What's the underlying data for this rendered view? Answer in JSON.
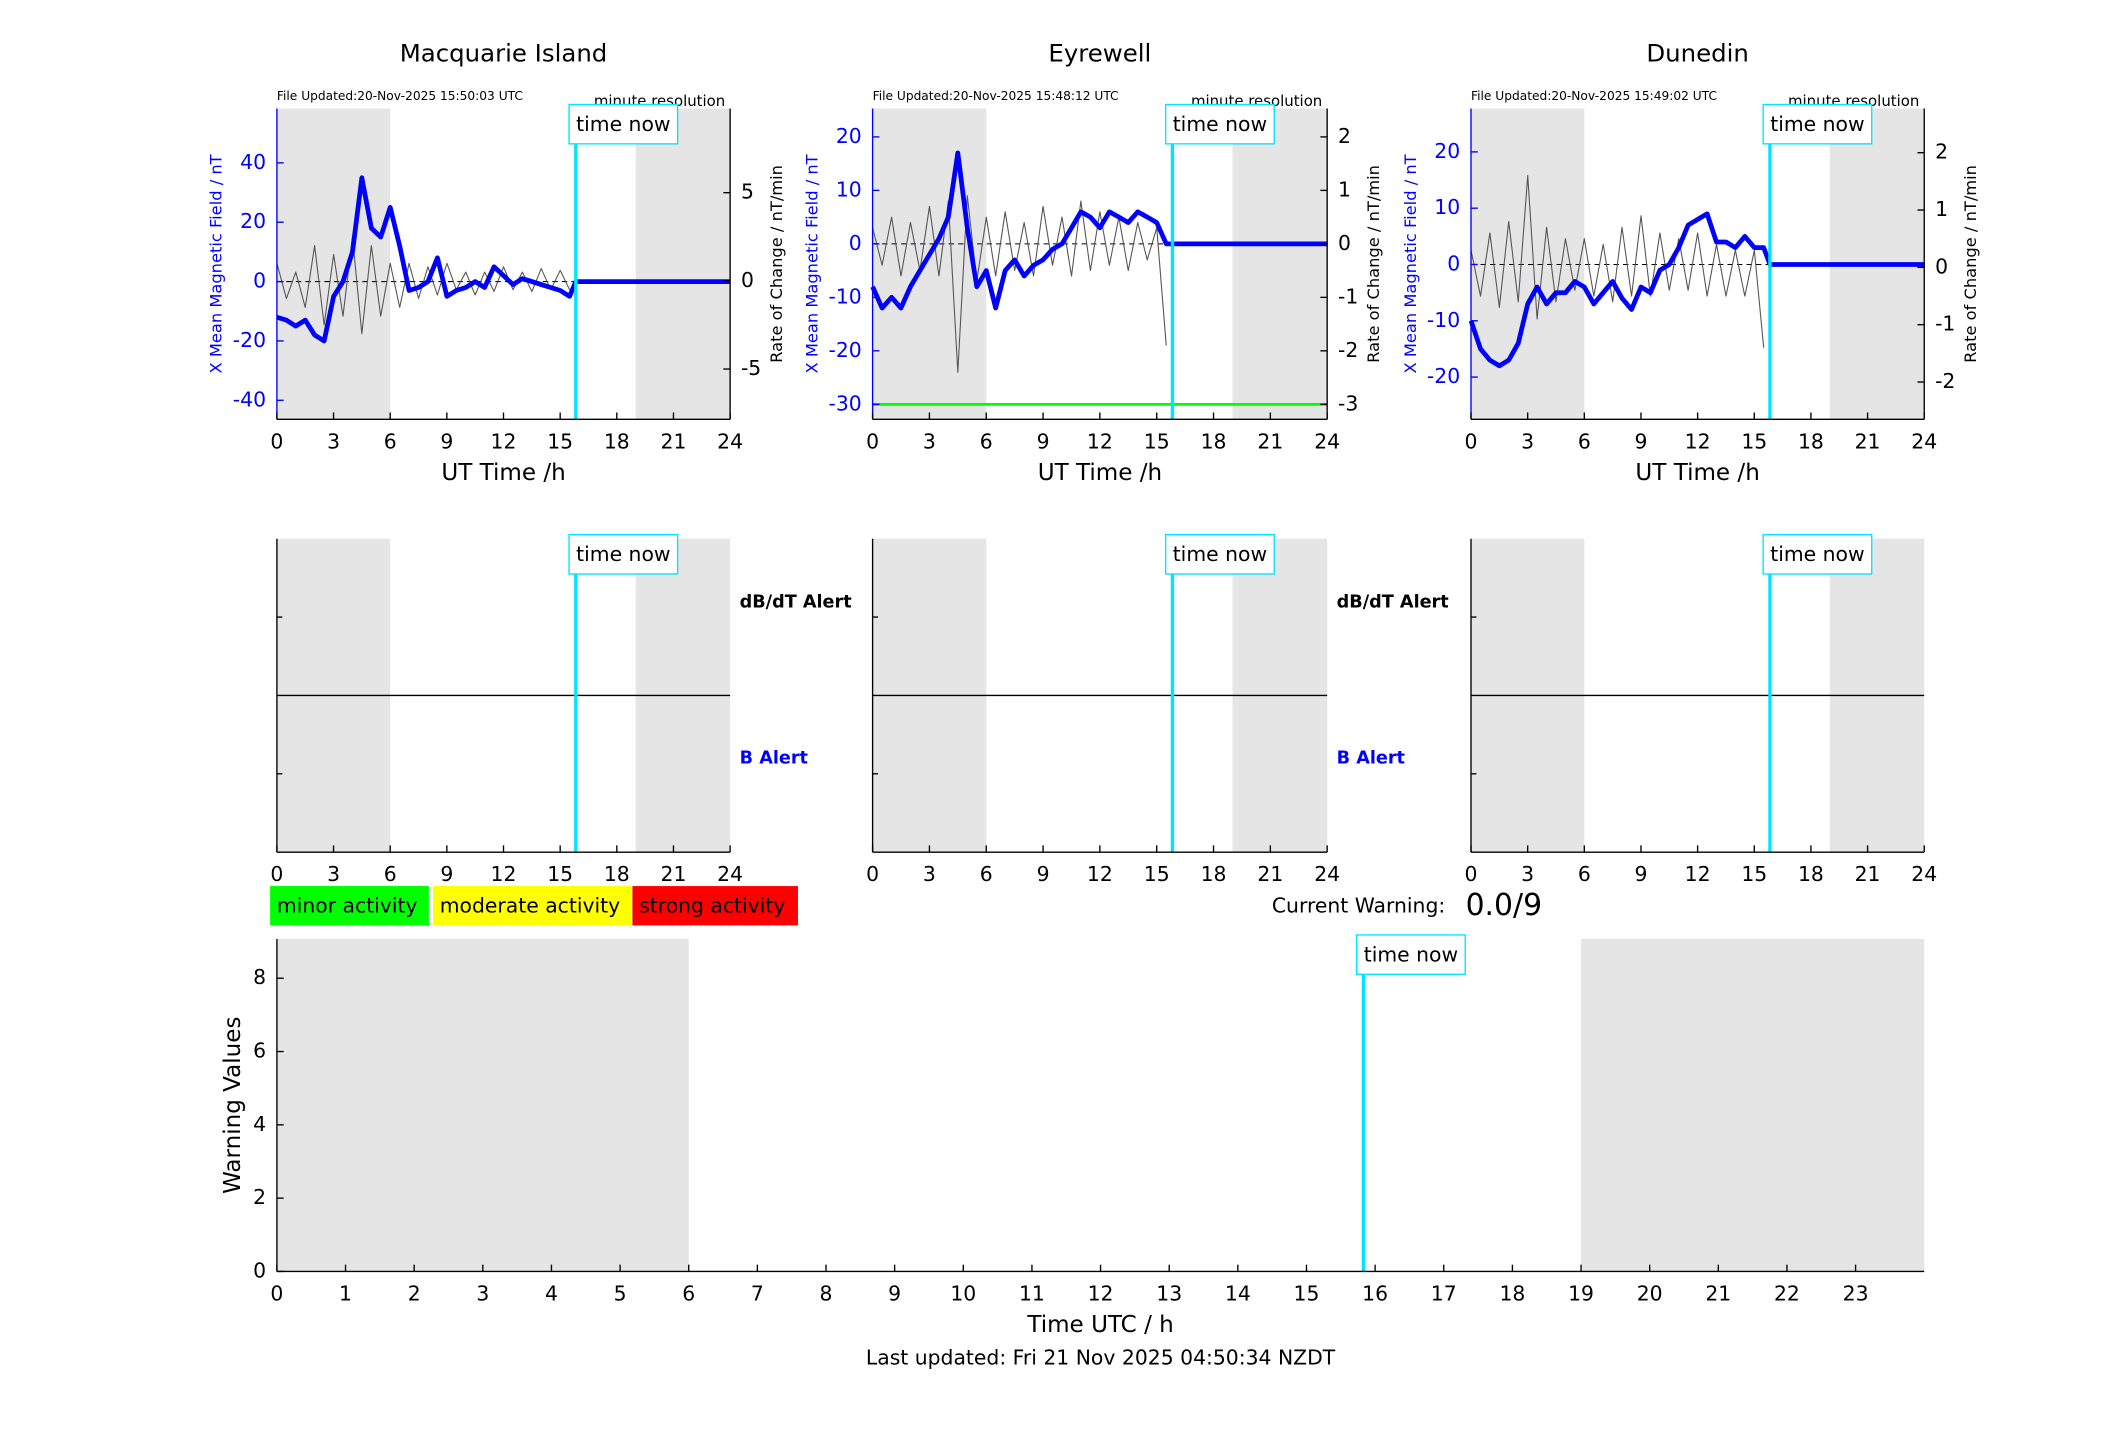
{
  "chart_data": [
    {
      "type": "line",
      "title": "Macquarie Island",
      "subtitle": "File Updated:20-Nov-2025 15:50:03 UTC",
      "note": "minute resolution",
      "xlabel": "UT Time /h",
      "ylabel": "X Mean Magnetic Field / nT",
      "y2label": "Rate of Change / nT/min",
      "ycolor": "#0000ff",
      "xlim": [
        0,
        24
      ],
      "xticks": [
        0,
        3,
        6,
        9,
        12,
        15,
        18,
        21,
        24
      ],
      "ylim": [
        -46.4,
        58.3
      ],
      "yticks": [
        -40,
        -20,
        0,
        20,
        40
      ],
      "y2lim": [
        -7.85,
        9.77
      ],
      "y2ticks": [
        -5,
        0,
        5
      ],
      "shaded": [
        [
          0,
          6
        ],
        [
          19,
          24
        ]
      ],
      "time_now": {
        "x": 15.83,
        "label": "time now"
      },
      "series": [
        {
          "color": "#555555",
          "axis": "y2",
          "x": [
            0,
            0.5,
            1,
            1.5,
            2,
            2.5,
            3,
            3.5,
            4,
            4.5,
            5,
            5.5,
            6,
            6.5,
            7,
            7.5,
            8,
            8.5,
            9,
            9.5,
            10,
            10.5,
            11,
            11.5,
            12,
            12.5,
            13,
            13.5,
            14,
            14.5,
            15,
            15.5
          ],
          "values": [
            1,
            -1,
            0.5,
            -1.5,
            2,
            -2.5,
            1.5,
            -2,
            2.5,
            -3,
            2,
            -2,
            1,
            -1.5,
            1,
            -1,
            0.8,
            -0.8,
            1,
            -0.5,
            0.5,
            -0.8,
            0.5,
            -0.6,
            0.8,
            -0.5,
            0.5,
            -0.6,
            0.7,
            -0.5,
            0.6,
            -0.5
          ]
        },
        {
          "color": "#0000ff",
          "axis": "y",
          "x": [
            0,
            0.5,
            1,
            1.5,
            2,
            2.5,
            3,
            3.5,
            4,
            4.5,
            5,
            5.5,
            6,
            6.5,
            7,
            7.5,
            8,
            8.5,
            9,
            9.5,
            10,
            10.5,
            11,
            11.5,
            12,
            12.5,
            13,
            13.5,
            14,
            14.5,
            15,
            15.5,
            15.83,
            24
          ],
          "values": [
            -12,
            -13,
            -15,
            -13,
            -18,
            -20,
            -5,
            0,
            10,
            35,
            18,
            15,
            25,
            12,
            -3,
            -2,
            0,
            8,
            -5,
            -3,
            -2,
            0,
            -2,
            5,
            2,
            -1,
            1,
            0,
            -1,
            -2,
            -3,
            -5,
            0,
            0
          ]
        }
      ]
    },
    {
      "type": "line",
      "title": "Eyrewell",
      "subtitle": "File Updated:20-Nov-2025 15:48:12 UTC",
      "note": "minute resolution",
      "xlabel": "UT Time /h",
      "ylabel": "X Mean Magnetic Field / nT",
      "y2label": "Rate of Change / nT/min",
      "ycolor": "#0000ff",
      "xlim": [
        0,
        24
      ],
      "xticks": [
        0,
        3,
        6,
        9,
        12,
        15,
        18,
        21,
        24
      ],
      "ylim": [
        -32.8,
        25.3
      ],
      "yticks": [
        -30,
        -20,
        -10,
        0,
        10,
        20
      ],
      "y2lim": [
        -3.28,
        2.53
      ],
      "y2ticks": [
        -3,
        -2,
        -1,
        0,
        1,
        2
      ],
      "shaded": [
        [
          0,
          6
        ],
        [
          19,
          24
        ]
      ],
      "time_now": {
        "x": 15.83,
        "label": "time now"
      },
      "series": [
        {
          "color": "#555555",
          "axis": "y2",
          "x": [
            0,
            0.5,
            1,
            1.5,
            2,
            2.5,
            3,
            3.5,
            4,
            4.5,
            5,
            5.5,
            6,
            6.5,
            7,
            7.5,
            8,
            8.5,
            9,
            9.5,
            10,
            10.5,
            11,
            11.5,
            12,
            12.5,
            13,
            13.5,
            14,
            14.5,
            15,
            15.5
          ],
          "values": [
            0.3,
            -0.4,
            0.5,
            -0.6,
            0.4,
            -0.5,
            0.7,
            -0.6,
            0.8,
            -2.4,
            0.9,
            -0.7,
            0.5,
            -0.6,
            0.6,
            -0.5,
            0.4,
            -0.6,
            0.7,
            -0.4,
            0.5,
            -0.6,
            0.8,
            -0.5,
            0.6,
            -0.4,
            0.5,
            -0.5,
            0.4,
            -0.3,
            0.3,
            -1.9
          ]
        },
        {
          "color": "#0000ff",
          "axis": "y",
          "x": [
            0,
            0.5,
            1,
            1.5,
            2,
            2.5,
            3,
            3.5,
            4,
            4.5,
            5,
            5.5,
            6,
            6.5,
            7,
            7.5,
            8,
            8.5,
            9,
            9.5,
            10,
            10.5,
            11,
            11.5,
            12,
            12.5,
            13,
            13.5,
            14,
            14.5,
            15,
            15.5,
            15.83,
            24
          ],
          "values": [
            -8,
            -12,
            -10,
            -12,
            -8,
            -5,
            -2,
            1,
            5,
            17,
            3,
            -8,
            -5,
            -12,
            -5,
            -3,
            -6,
            -4,
            -3,
            -1,
            0,
            3,
            6,
            5,
            3,
            6,
            5,
            4,
            6,
            5,
            4,
            0,
            0,
            0
          ]
        },
        {
          "color": "#00ff00",
          "axis": "y",
          "x": [
            0,
            24
          ],
          "values": [
            -30,
            -30
          ]
        }
      ]
    },
    {
      "type": "line",
      "title": "Dunedin",
      "subtitle": "File Updated:20-Nov-2025 15:49:02 UTC",
      "note": "minute resolution",
      "xlabel": "UT Time /h",
      "ylabel": "X Mean Magnetic Field / nT",
      "y2label": "Rate of Change / nT/min",
      "ycolor": "#0000ff",
      "xlim": [
        0,
        24
      ],
      "xticks": [
        0,
        3,
        6,
        9,
        12,
        15,
        18,
        21,
        24
      ],
      "ylim": [
        -27.5,
        27.7
      ],
      "yticks": [
        -20,
        -10,
        0,
        10,
        20
      ],
      "y2lim": [
        -2.65,
        2.77
      ],
      "y2ticks": [
        -2,
        -1,
        0,
        1,
        2
      ],
      "shaded": [
        [
          0,
          6
        ],
        [
          19,
          24
        ]
      ],
      "time_now": {
        "x": 15.83,
        "label": "time now"
      },
      "series": [
        {
          "color": "#555555",
          "axis": "y2",
          "x": [
            0,
            0.5,
            1,
            1.5,
            2,
            2.5,
            3,
            3.5,
            4,
            4.5,
            5,
            5.5,
            6,
            6.5,
            7,
            7.5,
            8,
            8.5,
            9,
            9.5,
            10,
            10.5,
            11,
            11.5,
            12,
            12.5,
            13,
            13.5,
            14,
            14.5,
            15,
            15.5
          ],
          "values": [
            0.3,
            -0.5,
            0.6,
            -0.7,
            0.8,
            -0.6,
            1.6,
            -0.9,
            0.7,
            -0.6,
            0.5,
            -0.4,
            0.5,
            -0.5,
            0.4,
            -0.6,
            0.7,
            -0.5,
            0.9,
            -0.5,
            0.6,
            -0.4,
            0.5,
            -0.4,
            0.6,
            -0.5,
            0.4,
            -0.5,
            0.3,
            -0.5,
            0.3,
            -1.4
          ]
        },
        {
          "color": "#0000ff",
          "axis": "y",
          "x": [
            0,
            0.5,
            1,
            1.5,
            2,
            2.5,
            3,
            3.5,
            4,
            4.5,
            5,
            5.5,
            6,
            6.5,
            7,
            7.5,
            8,
            8.5,
            9,
            9.5,
            10,
            10.5,
            11,
            11.5,
            12,
            12.5,
            13,
            13.5,
            14,
            14.5,
            15,
            15.5,
            15.83,
            24
          ],
          "values": [
            -10,
            -15,
            -17,
            -18,
            -17,
            -14,
            -7,
            -4,
            -7,
            -5,
            -5,
            -3,
            -4,
            -7,
            -5,
            -3,
            -6,
            -8,
            -4,
            -5,
            -1,
            0,
            3,
            7,
            8,
            9,
            4,
            4,
            3,
            5,
            3,
            3,
            0,
            0
          ]
        }
      ]
    },
    {
      "type": "alert",
      "xlim": [
        0,
        24
      ],
      "xticks": [
        0,
        3,
        6,
        9,
        12,
        15,
        18,
        21,
        24
      ],
      "shaded": [
        [
          0,
          6
        ],
        [
          19,
          24
        ]
      ],
      "time_now": {
        "x": 15.83,
        "label": "time now"
      },
      "labels": [
        {
          "text": "dB/dT Alert",
          "color": "#000000"
        },
        {
          "text": "B Alert",
          "color": "#0000ff"
        }
      ]
    },
    {
      "type": "alert",
      "xlim": [
        0,
        24
      ],
      "xticks": [
        0,
        3,
        6,
        9,
        12,
        15,
        18,
        21,
        24
      ],
      "shaded": [
        [
          0,
          6
        ],
        [
          19,
          24
        ]
      ],
      "time_now": {
        "x": 15.83,
        "label": "time now"
      },
      "labels": [
        {
          "text": "dB/dT Alert",
          "color": "#000000"
        },
        {
          "text": "B Alert",
          "color": "#0000ff"
        }
      ]
    },
    {
      "type": "alert",
      "xlim": [
        0,
        24
      ],
      "xticks": [
        0,
        3,
        6,
        9,
        12,
        15,
        18,
        21,
        24
      ],
      "shaded": [
        [
          0,
          6
        ],
        [
          19,
          24
        ]
      ],
      "time_now": {
        "x": 15.83,
        "label": "time now"
      }
    },
    {
      "type": "warning",
      "xlabel": "Time UTC / h",
      "ylabel": "Warning Values",
      "ycolor": "#000000",
      "xlim": [
        0,
        24
      ],
      "xticks": [
        0,
        1,
        2,
        3,
        4,
        5,
        6,
        7,
        8,
        9,
        10,
        11,
        12,
        13,
        14,
        15,
        16,
        17,
        18,
        19,
        20,
        21,
        22,
        23
      ],
      "ylim": [
        0,
        9.07
      ],
      "yticks": [
        0,
        2,
        4,
        6,
        8
      ],
      "shaded": [
        [
          0,
          6
        ],
        [
          19,
          24
        ]
      ],
      "time_now": {
        "x": 15.83,
        "label": "time now"
      },
      "legend": [
        {
          "label": "minor activity",
          "color": "#00ff00"
        },
        {
          "label": "moderate activity",
          "color": "#ffff00"
        },
        {
          "label": "strong activity",
          "color": "#ff0000"
        }
      ],
      "current_warning_label": "Current Warning:",
      "current_warning": "0.0/9",
      "footer": "Last updated: Fri 21 Nov 2025 04:50:34 NZDT"
    }
  ]
}
